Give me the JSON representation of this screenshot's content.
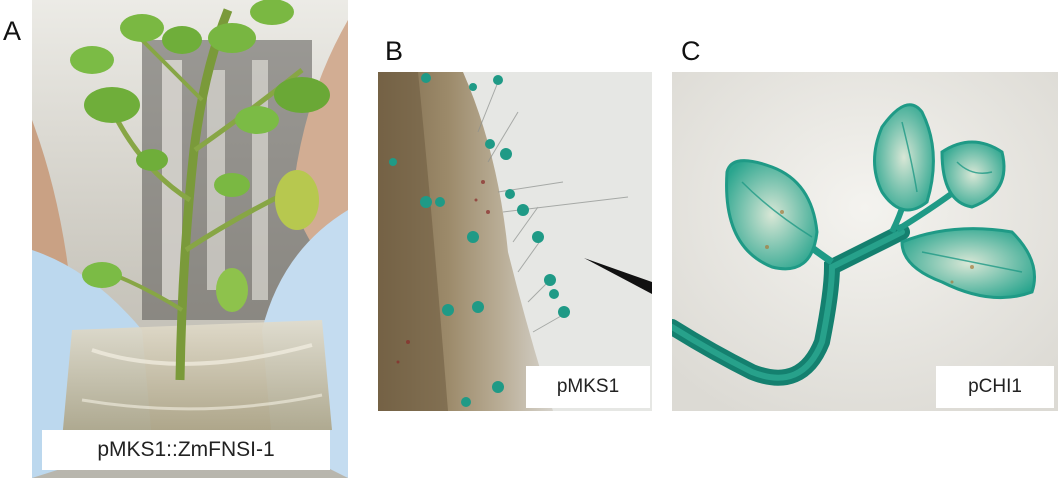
{
  "panels": [
    {
      "letter": "A",
      "caption": "pMKS1::ZmFNSI-1"
    },
    {
      "letter": "B",
      "caption": "pMKS1"
    },
    {
      "letter": "C",
      "caption": "pCHI1"
    }
  ],
  "colors": {
    "gus_stain": "#1f9a86",
    "stem_green": "#7a9a3a",
    "gel": "#d8d2b8",
    "glove": "#bcd8ee"
  }
}
